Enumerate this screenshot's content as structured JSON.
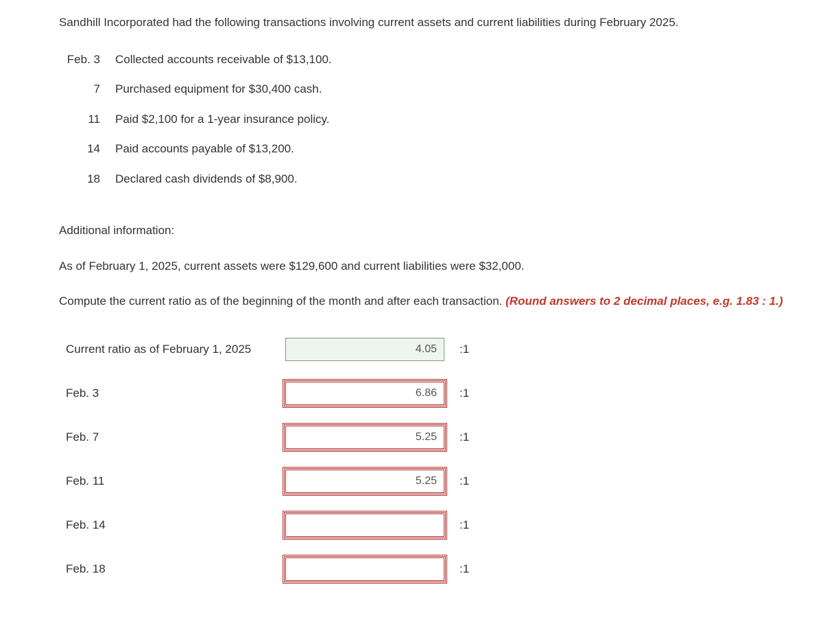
{
  "intro": "Sandhill Incorporated had the following transactions involving current assets and current liabilities during February 2025.",
  "transactions": [
    {
      "date": "Feb. 3",
      "desc": "Collected accounts receivable of $13,100."
    },
    {
      "date": "7",
      "desc": "Purchased equipment for $30,400 cash."
    },
    {
      "date": "11",
      "desc": "Paid $2,100 for a 1-year insurance policy."
    },
    {
      "date": "14",
      "desc": "Paid accounts payable of $13,200."
    },
    {
      "date": "18",
      "desc": "Declared cash dividends of $8,900."
    }
  ],
  "additional_label": "Additional information:",
  "additional_info": "As of February 1, 2025, current assets were $129,600 and current liabilities were $32,000.",
  "compute_text": "Compute the current ratio as of the beginning of the month and after each transaction. ",
  "hint": "(Round answers to 2 decimal places, e.g. 1.83 : 1.)",
  "answers": [
    {
      "label": "Current ratio as of February 1, 2025",
      "value": "4.05",
      "state": "correct",
      "suffix": ":1"
    },
    {
      "label": "Feb. 3",
      "value": "6.86",
      "state": "wrong",
      "suffix": ":1"
    },
    {
      "label": "Feb. 7",
      "value": "5.25",
      "state": "wrong",
      "suffix": ":1"
    },
    {
      "label": "Feb. 11",
      "value": "5.25",
      "state": "wrong",
      "suffix": ":1"
    },
    {
      "label": "Feb. 14",
      "value": "",
      "state": "empty",
      "suffix": ":1"
    },
    {
      "label": "Feb. 18",
      "value": "",
      "state": "empty",
      "suffix": ":1"
    }
  ]
}
